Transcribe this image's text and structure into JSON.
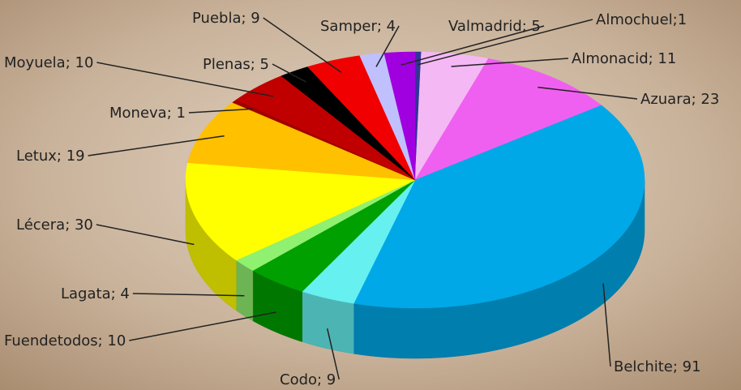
{
  "chart_data": {
    "type": "pie3d",
    "values": [
      1,
      11,
      23,
      91,
      9,
      10,
      4,
      30,
      19,
      1,
      10,
      5,
      9,
      4,
      5
    ],
    "value_labels": [
      "Almochuel;1",
      "Almonacid; 11",
      "Azuara; 23",
      "Belchite; 91",
      "Codo; 9",
      "Fuendetodos; 10",
      "Lagata; 4",
      "Lécera; 30",
      "Letux; 19",
      "Moneva; 1",
      "Moyuela; 10",
      "Plenas; 5",
      "Puebla; 9",
      "Samper; 4",
      "Valmadrid; 5"
    ],
    "colors": [
      "#333399",
      "#f4b8f4",
      "#f060f0",
      "#00a8e8",
      "#66f0f0",
      "#00a000",
      "#90f070",
      "#ffff00",
      "#ffc000",
      "#a00000",
      "#c00000",
      "#000000",
      "#f00000",
      "#c0c0ff",
      "#a000e0"
    ]
  }
}
